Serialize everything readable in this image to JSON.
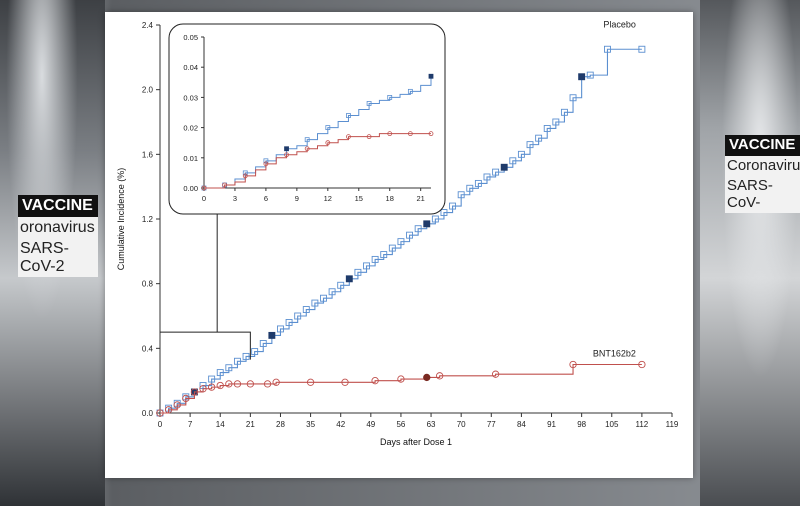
{
  "background": {
    "left_vial_head": "VACCINE",
    "left_vial_line1": "oronavirus",
    "left_vial_line2": "SARS-CoV-2",
    "right_vial_head": "VACCINE",
    "right_vial_line1": "Coronavirus",
    "right_vial_line2": "SARS-CoV-"
  },
  "chart_data": {
    "type": "line",
    "xlabel": "Days after Dose 1",
    "ylabel": "Cumulative Incidence (%)",
    "xlim": [
      0,
      119
    ],
    "ylim": [
      0,
      2.4
    ],
    "x_ticks": [
      "0",
      "7",
      "14",
      "21",
      "28",
      "35",
      "42",
      "49",
      "56",
      "63",
      "70",
      "77",
      "84",
      "91",
      "98",
      "105",
      "112",
      "119"
    ],
    "y_ticks": [
      "0.0",
      "0.4",
      "0.8",
      "1.2",
      "1.6",
      "2.0",
      "2.4"
    ],
    "series": [
      {
        "name": "Placebo",
        "color": "#5b8fd0",
        "marker": "square",
        "x": [
          0,
          2,
          4,
          6,
          8,
          10,
          12,
          14,
          16,
          18,
          20,
          22,
          24,
          26,
          28,
          30,
          32,
          34,
          36,
          38,
          40,
          42,
          44,
          46,
          48,
          50,
          52,
          54,
          56,
          58,
          60,
          62,
          64,
          66,
          68,
          70,
          72,
          74,
          76,
          78,
          80,
          82,
          84,
          86,
          88,
          90,
          92,
          94,
          96,
          98,
          100,
          104,
          112
        ],
        "y": [
          0,
          0.03,
          0.06,
          0.1,
          0.13,
          0.17,
          0.21,
          0.25,
          0.28,
          0.32,
          0.35,
          0.38,
          0.43,
          0.48,
          0.52,
          0.56,
          0.6,
          0.64,
          0.68,
          0.71,
          0.75,
          0.79,
          0.83,
          0.87,
          0.91,
          0.95,
          0.98,
          1.02,
          1.06,
          1.1,
          1.14,
          1.17,
          1.2,
          1.24,
          1.28,
          1.35,
          1.39,
          1.42,
          1.46,
          1.49,
          1.52,
          1.56,
          1.6,
          1.66,
          1.7,
          1.76,
          1.8,
          1.86,
          1.95,
          2.08,
          2.09,
          2.25,
          2.25
        ]
      },
      {
        "name": "BNT162b2",
        "color": "#c0504d",
        "marker": "circle",
        "x": [
          0,
          2,
          4,
          6,
          8,
          10,
          12,
          14,
          16,
          18,
          21,
          25,
          27,
          35,
          43,
          50,
          56,
          62,
          65,
          78,
          96,
          112
        ],
        "y": [
          0,
          0.02,
          0.05,
          0.09,
          0.13,
          0.15,
          0.16,
          0.17,
          0.18,
          0.18,
          0.18,
          0.18,
          0.19,
          0.19,
          0.19,
          0.2,
          0.21,
          0.22,
          0.23,
          0.24,
          0.3,
          0.3
        ]
      }
    ],
    "inset": {
      "xlim": [
        0,
        22
      ],
      "ylim": [
        0,
        0.05
      ],
      "x_ticks": [
        "0",
        "3",
        "6",
        "9",
        "12",
        "15",
        "18",
        "21"
      ],
      "y_ticks": [
        "0.00",
        "0.01",
        "0.02",
        "0.03",
        "0.04",
        "0.05"
      ],
      "series": [
        {
          "name": "Placebo",
          "x": [
            0,
            1,
            2,
            3,
            4,
            5,
            6,
            7,
            8,
            9,
            10,
            11,
            12,
            13,
            14,
            15,
            16,
            17,
            18,
            19,
            20,
            21,
            22
          ],
          "y": [
            0,
            0,
            0.001,
            0.003,
            0.005,
            0.007,
            0.009,
            0.011,
            0.013,
            0.014,
            0.016,
            0.018,
            0.02,
            0.022,
            0.024,
            0.026,
            0.028,
            0.029,
            0.03,
            0.031,
            0.032,
            0.034,
            0.037
          ]
        },
        {
          "name": "BNT162b2",
          "x": [
            0,
            1,
            2,
            3,
            4,
            5,
            6,
            7,
            8,
            9,
            10,
            11,
            12,
            13,
            14,
            15,
            16,
            17,
            18,
            19,
            20,
            21,
            22
          ],
          "y": [
            0,
            0,
            0.001,
            0.002,
            0.004,
            0.006,
            0.008,
            0.01,
            0.011,
            0.012,
            0.013,
            0.014,
            0.015,
            0.016,
            0.017,
            0.017,
            0.017,
            0.018,
            0.018,
            0.018,
            0.018,
            0.018,
            0.018
          ]
        }
      ]
    }
  }
}
